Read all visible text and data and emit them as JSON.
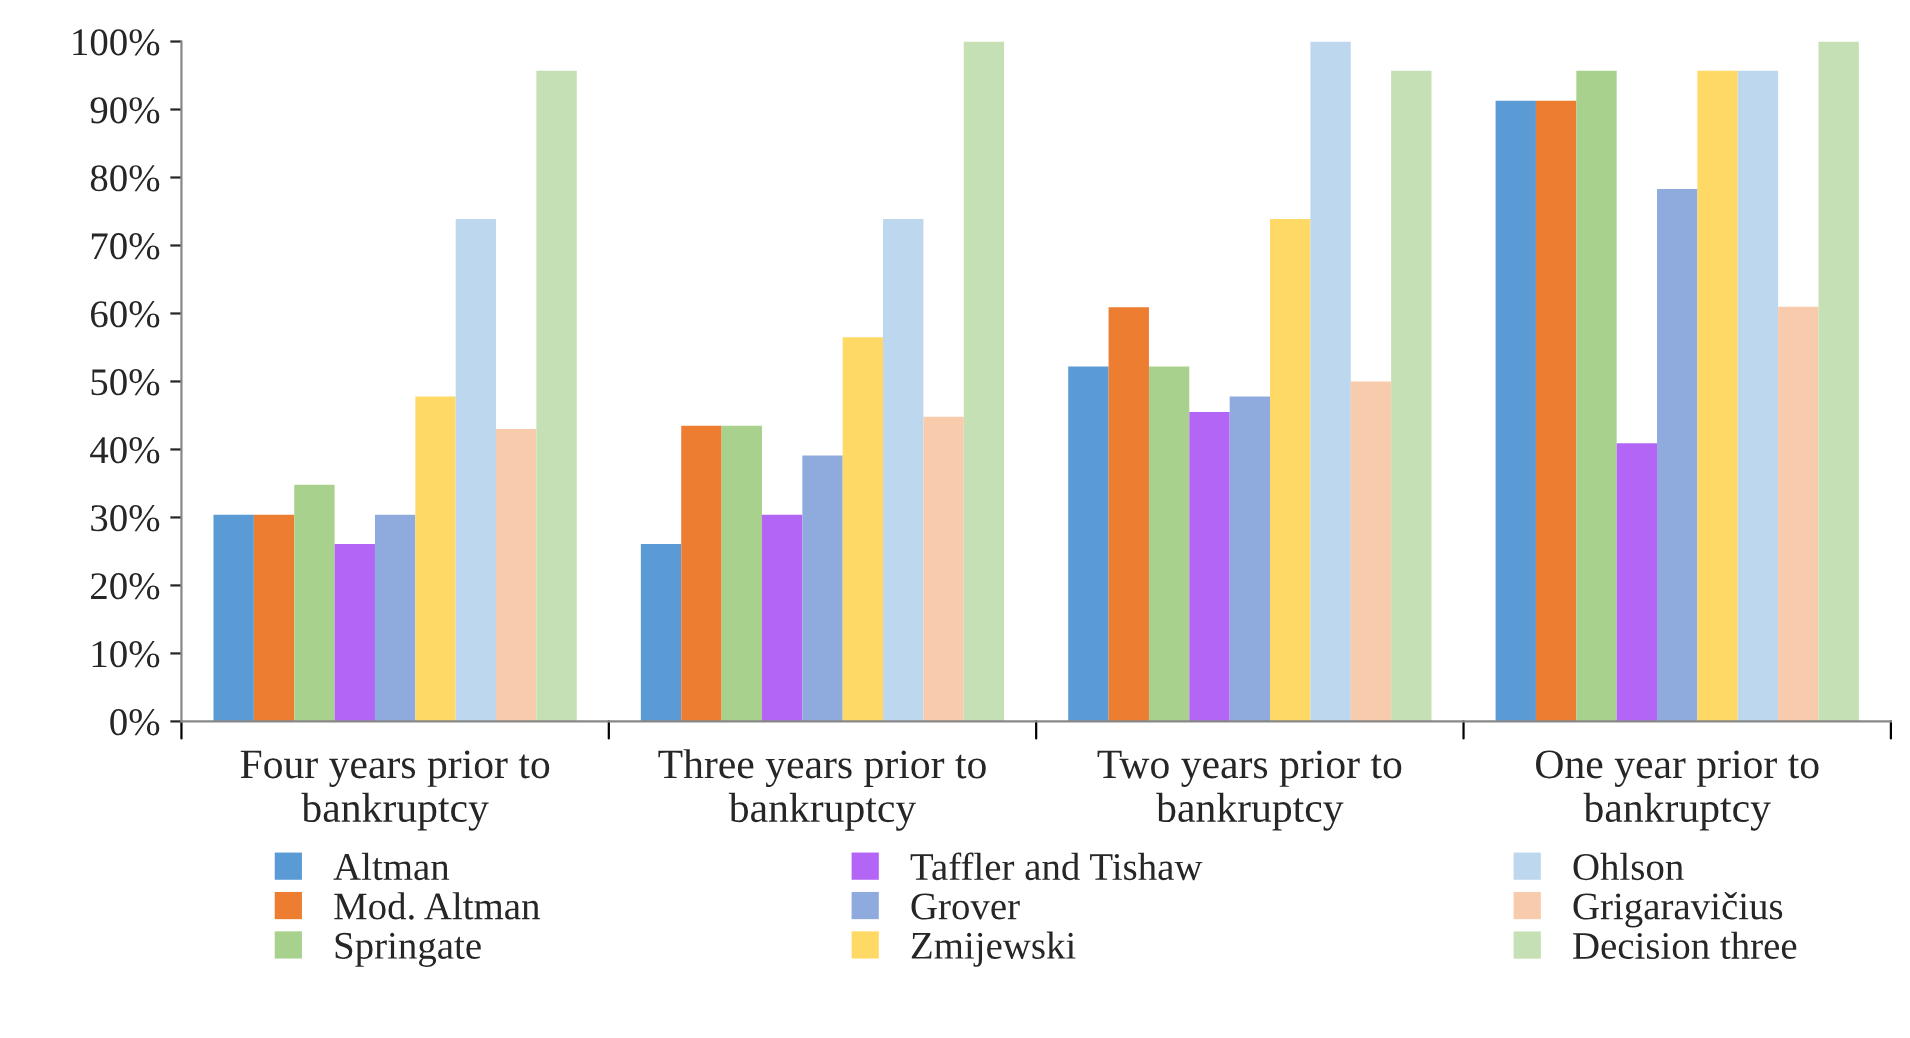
{
  "chart_data": {
    "type": "bar",
    "categories": [
      "Four years prior to bankruptcy",
      "Three years prior to bankruptcy",
      "Two years prior to bankruptcy",
      "One year prior to bankruptcy"
    ],
    "series": [
      {
        "name": "Altman",
        "color": "#5b9bd5",
        "values": [
          30.4,
          26.1,
          52.2,
          91.3
        ]
      },
      {
        "name": "Mod. Altman",
        "color": "#ed7d31",
        "values": [
          30.4,
          43.5,
          60.9,
          91.3
        ]
      },
      {
        "name": "Springate",
        "color": "#a9d18e",
        "values": [
          34.8,
          43.5,
          52.2,
          95.7
        ]
      },
      {
        "name": "Taffler and Tishaw",
        "color": "#b366f5",
        "values": [
          26.1,
          30.4,
          45.5,
          40.9
        ]
      },
      {
        "name": "Grover",
        "color": "#8faadc",
        "values": [
          30.4,
          39.1,
          47.8,
          78.3
        ]
      },
      {
        "name": "Zmijewski",
        "color": "#ffd966",
        "values": [
          47.8,
          56.5,
          73.9,
          95.7
        ]
      },
      {
        "name": "Ohlson",
        "color": "#bdd7ee",
        "values": [
          73.9,
          73.9,
          100,
          95.7
        ]
      },
      {
        "name": "Grigaravičius",
        "color": "#f8cbad",
        "values": [
          43,
          44.8,
          50,
          61
        ]
      },
      {
        "name": "Decision three",
        "color": "#c5e0b4",
        "values": [
          95.7,
          100,
          95.7,
          100
        ]
      }
    ],
    "ylim": [
      0,
      100
    ],
    "yticks": [
      {
        "value": 0,
        "label": "0%"
      },
      {
        "value": 10,
        "label": "10%"
      },
      {
        "value": 20,
        "label": "20%"
      },
      {
        "value": 30,
        "label": "30%"
      },
      {
        "value": 40,
        "label": "40%"
      },
      {
        "value": 50,
        "label": "50%"
      },
      {
        "value": 60,
        "label": "60%"
      },
      {
        "value": 70,
        "label": "70%"
      },
      {
        "value": 80,
        "label": "80%"
      },
      {
        "value": 90,
        "label": "90%"
      },
      {
        "value": 100,
        "label": "100%"
      }
    ],
    "grid": false,
    "legend": "bottom"
  }
}
